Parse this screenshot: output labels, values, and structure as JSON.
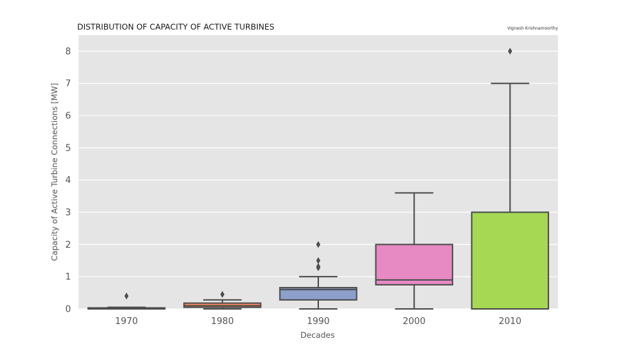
{
  "chart_data": {
    "type": "boxplot",
    "title": "DISTRIBUTION OF CAPACITY OF ACTIVE TURBINES",
    "credit": "Vignesh Krishnamoorthy",
    "xlabel": "Decades",
    "ylabel": "Capacity of Active Turbine Connections [MW]",
    "ylim": [
      0,
      8.5
    ],
    "yticks": [
      0,
      1,
      2,
      3,
      4,
      5,
      6,
      7,
      8
    ],
    "grid": true,
    "background": "#e5e5e5",
    "line_color": "#4d4d4d",
    "categories": [
      "1970",
      "1980",
      "1990",
      "2000",
      "2010"
    ],
    "boxes": [
      {
        "category": "1970",
        "color": "#66c2a5",
        "whisker_low": 0.0,
        "q1": 0.0,
        "median": 0.02,
        "q3": 0.03,
        "whisker_high": 0.05,
        "outliers": [
          0.4
        ]
      },
      {
        "category": "1980",
        "color": "#fc8d62",
        "whisker_low": 0.0,
        "q1": 0.05,
        "median": 0.1,
        "q3": 0.18,
        "whisker_high": 0.28,
        "outliers": [
          0.45
        ]
      },
      {
        "category": "1990",
        "color": "#8da0cb",
        "whisker_low": 0.0,
        "q1": 0.28,
        "median": 0.6,
        "q3": 0.66,
        "whisker_high": 1.0,
        "outliers": [
          1.28,
          1.32,
          1.5,
          2.0
        ]
      },
      {
        "category": "2000",
        "color": "#e78ac3",
        "whisker_low": 0.0,
        "q1": 0.75,
        "median": 0.9,
        "q3": 2.0,
        "whisker_high": 3.6,
        "outliers": []
      },
      {
        "category": "2010",
        "color": "#a6d854",
        "whisker_low": 0.0,
        "q1": 0.0,
        "median": 3.0,
        "q3": 3.0,
        "whisker_high": 7.0,
        "outliers": [
          8.0
        ]
      }
    ]
  }
}
